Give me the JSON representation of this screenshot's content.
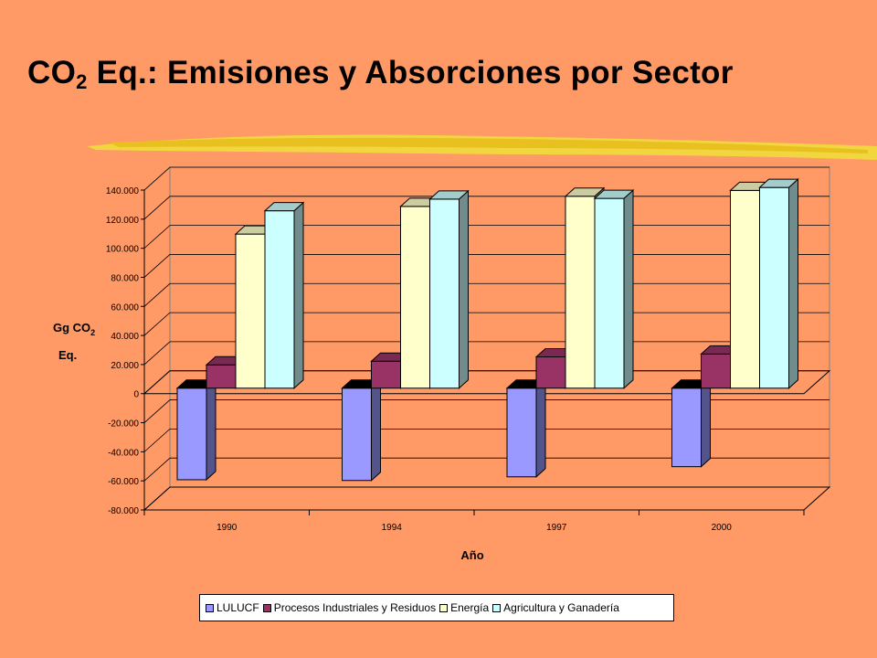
{
  "title": {
    "main": "CO",
    "sub": "2",
    "rest": " Eq.: Emisiones y Absorciones por Sector"
  },
  "chart_data": {
    "type": "bar",
    "categories": [
      "1990",
      "1994",
      "1997",
      "2000"
    ],
    "series": [
      {
        "name": "LULUCF",
        "color": "#9999FF",
        "values": [
          -63000,
          -63500,
          -61000,
          -54000
        ]
      },
      {
        "name": "Procesos Industriales y Residuos",
        "color": "#993366",
        "values": [
          16000,
          18500,
          21500,
          23500
        ]
      },
      {
        "name": "Energía",
        "color": "#FFFFCC",
        "values": [
          106000,
          125000,
          132000,
          136000
        ]
      },
      {
        "name": "Agricultura y Ganadería",
        "color": "#CCFFFF",
        "values": [
          122000,
          130000,
          130500,
          138000
        ]
      }
    ],
    "ylim": [
      -80000,
      140000
    ],
    "yticks": [
      "140.000",
      "120.000",
      "100.000",
      "80.000",
      "60.000",
      "40.000",
      "20.000",
      "0",
      "-20.000",
      "-40.000",
      "-60.000",
      "-80.000"
    ],
    "ylabel_line1": "Gg CO",
    "ylabel_sub": "2",
    "ylabel_line2": "Eq.",
    "xlabel": "Año",
    "legend_position": "bottom",
    "grid": true
  }
}
